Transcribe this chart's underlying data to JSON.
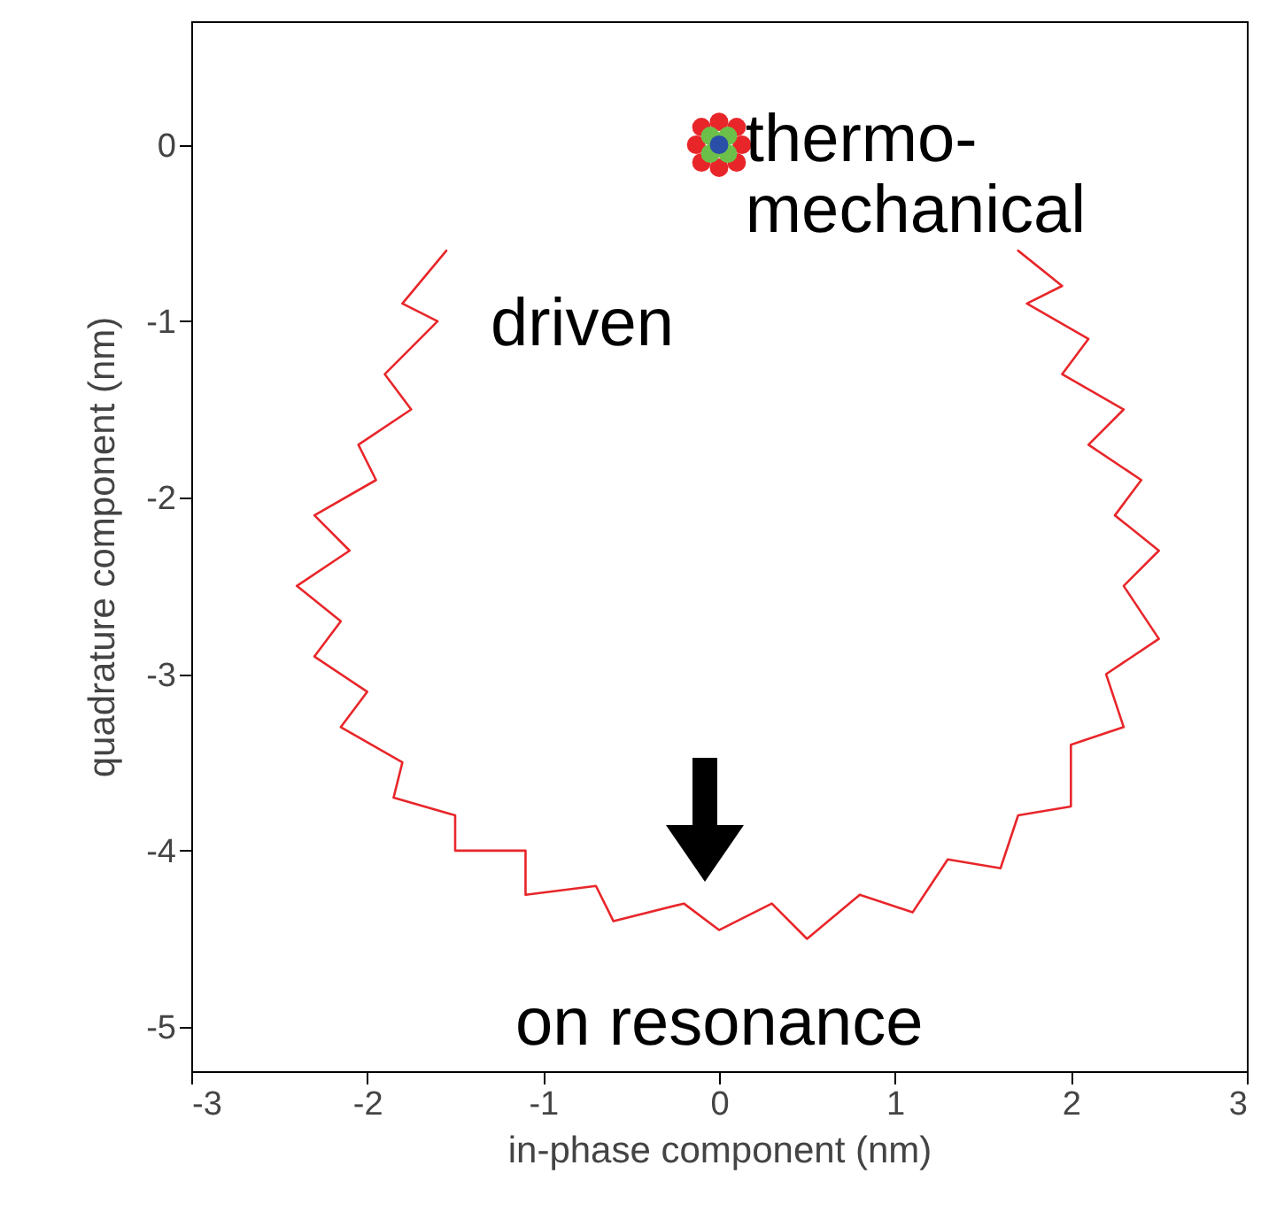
{
  "chart_data": {
    "type": "line",
    "xlabel": "in-phase component (nm)",
    "ylabel": "quadrature component (nm)",
    "xlim": [
      -3,
      3
    ],
    "ylim": [
      -5.25,
      0.7
    ],
    "xticks": [
      -3,
      -2,
      -1,
      0,
      1,
      2,
      3
    ],
    "yticks": [
      -5,
      -4,
      -3,
      -2,
      -1,
      0
    ],
    "grid": false,
    "series": [
      {
        "type": "line",
        "color": "#e8262a",
        "marker": "none",
        "line_style": "solid",
        "x": [
          -1.55,
          -1.8,
          -1.6,
          -1.9,
          -1.75,
          -2.05,
          -1.95,
          -2.3,
          -2.1,
          -2.4,
          -2.15,
          -2.3,
          -2.0,
          -2.15,
          -1.8,
          -1.85,
          -1.5,
          -1.5,
          -1.1,
          -1.1,
          -0.7,
          -0.6,
          -0.2,
          0,
          0.3,
          0.5,
          0.8,
          1.1,
          1.3,
          1.6,
          1.7,
          2.0,
          2.0,
          2.3,
          2.2,
          2.5,
          2.3,
          2.5,
          2.25,
          2.4,
          2.1,
          2.3,
          1.95,
          2.1,
          1.75,
          1.95,
          1.7
        ],
        "values": [
          -0.6,
          -0.9,
          -1.0,
          -1.3,
          -1.5,
          -1.7,
          -1.9,
          -2.1,
          -2.3,
          -2.5,
          -2.7,
          -2.9,
          -3.1,
          -3.3,
          -3.5,
          -3.7,
          -3.8,
          -4.0,
          -4.0,
          -4.25,
          -4.2,
          -4.4,
          -4.3,
          -4.45,
          -4.3,
          -4.5,
          -4.25,
          -4.35,
          -4.05,
          -4.1,
          -3.8,
          -3.75,
          -3.4,
          -3.3,
          -3.0,
          -2.8,
          -2.5,
          -2.3,
          -2.1,
          -1.9,
          -1.7,
          -1.5,
          -1.3,
          -1.1,
          -0.9,
          -0.8,
          -0.6
        ]
      },
      {
        "type": "scatter",
        "color": "#e8262a",
        "marker": "circle",
        "x": [
          -0.1,
          0.1,
          -0.1,
          0.1,
          0,
          0,
          -0.13,
          0.13
        ],
        "values": [
          0.1,
          0.1,
          -0.1,
          -0.1,
          0.13,
          -0.13,
          0,
          0
        ]
      },
      {
        "type": "scatter",
        "color": "#6cc04a",
        "marker": "circle",
        "x": [
          -0.05,
          0.05,
          -0.05,
          0.05
        ],
        "values": [
          0.05,
          0.05,
          -0.05,
          -0.05
        ]
      },
      {
        "type": "scatter",
        "color": "#2a4fa8",
        "marker": "circle",
        "x": [
          0
        ],
        "values": [
          0
        ]
      }
    ],
    "annotations": [
      {
        "text": "thermo-\nmechanical",
        "x": 0.15,
        "y": 0.02
      },
      "driven",
      "on resonance"
    ]
  }
}
